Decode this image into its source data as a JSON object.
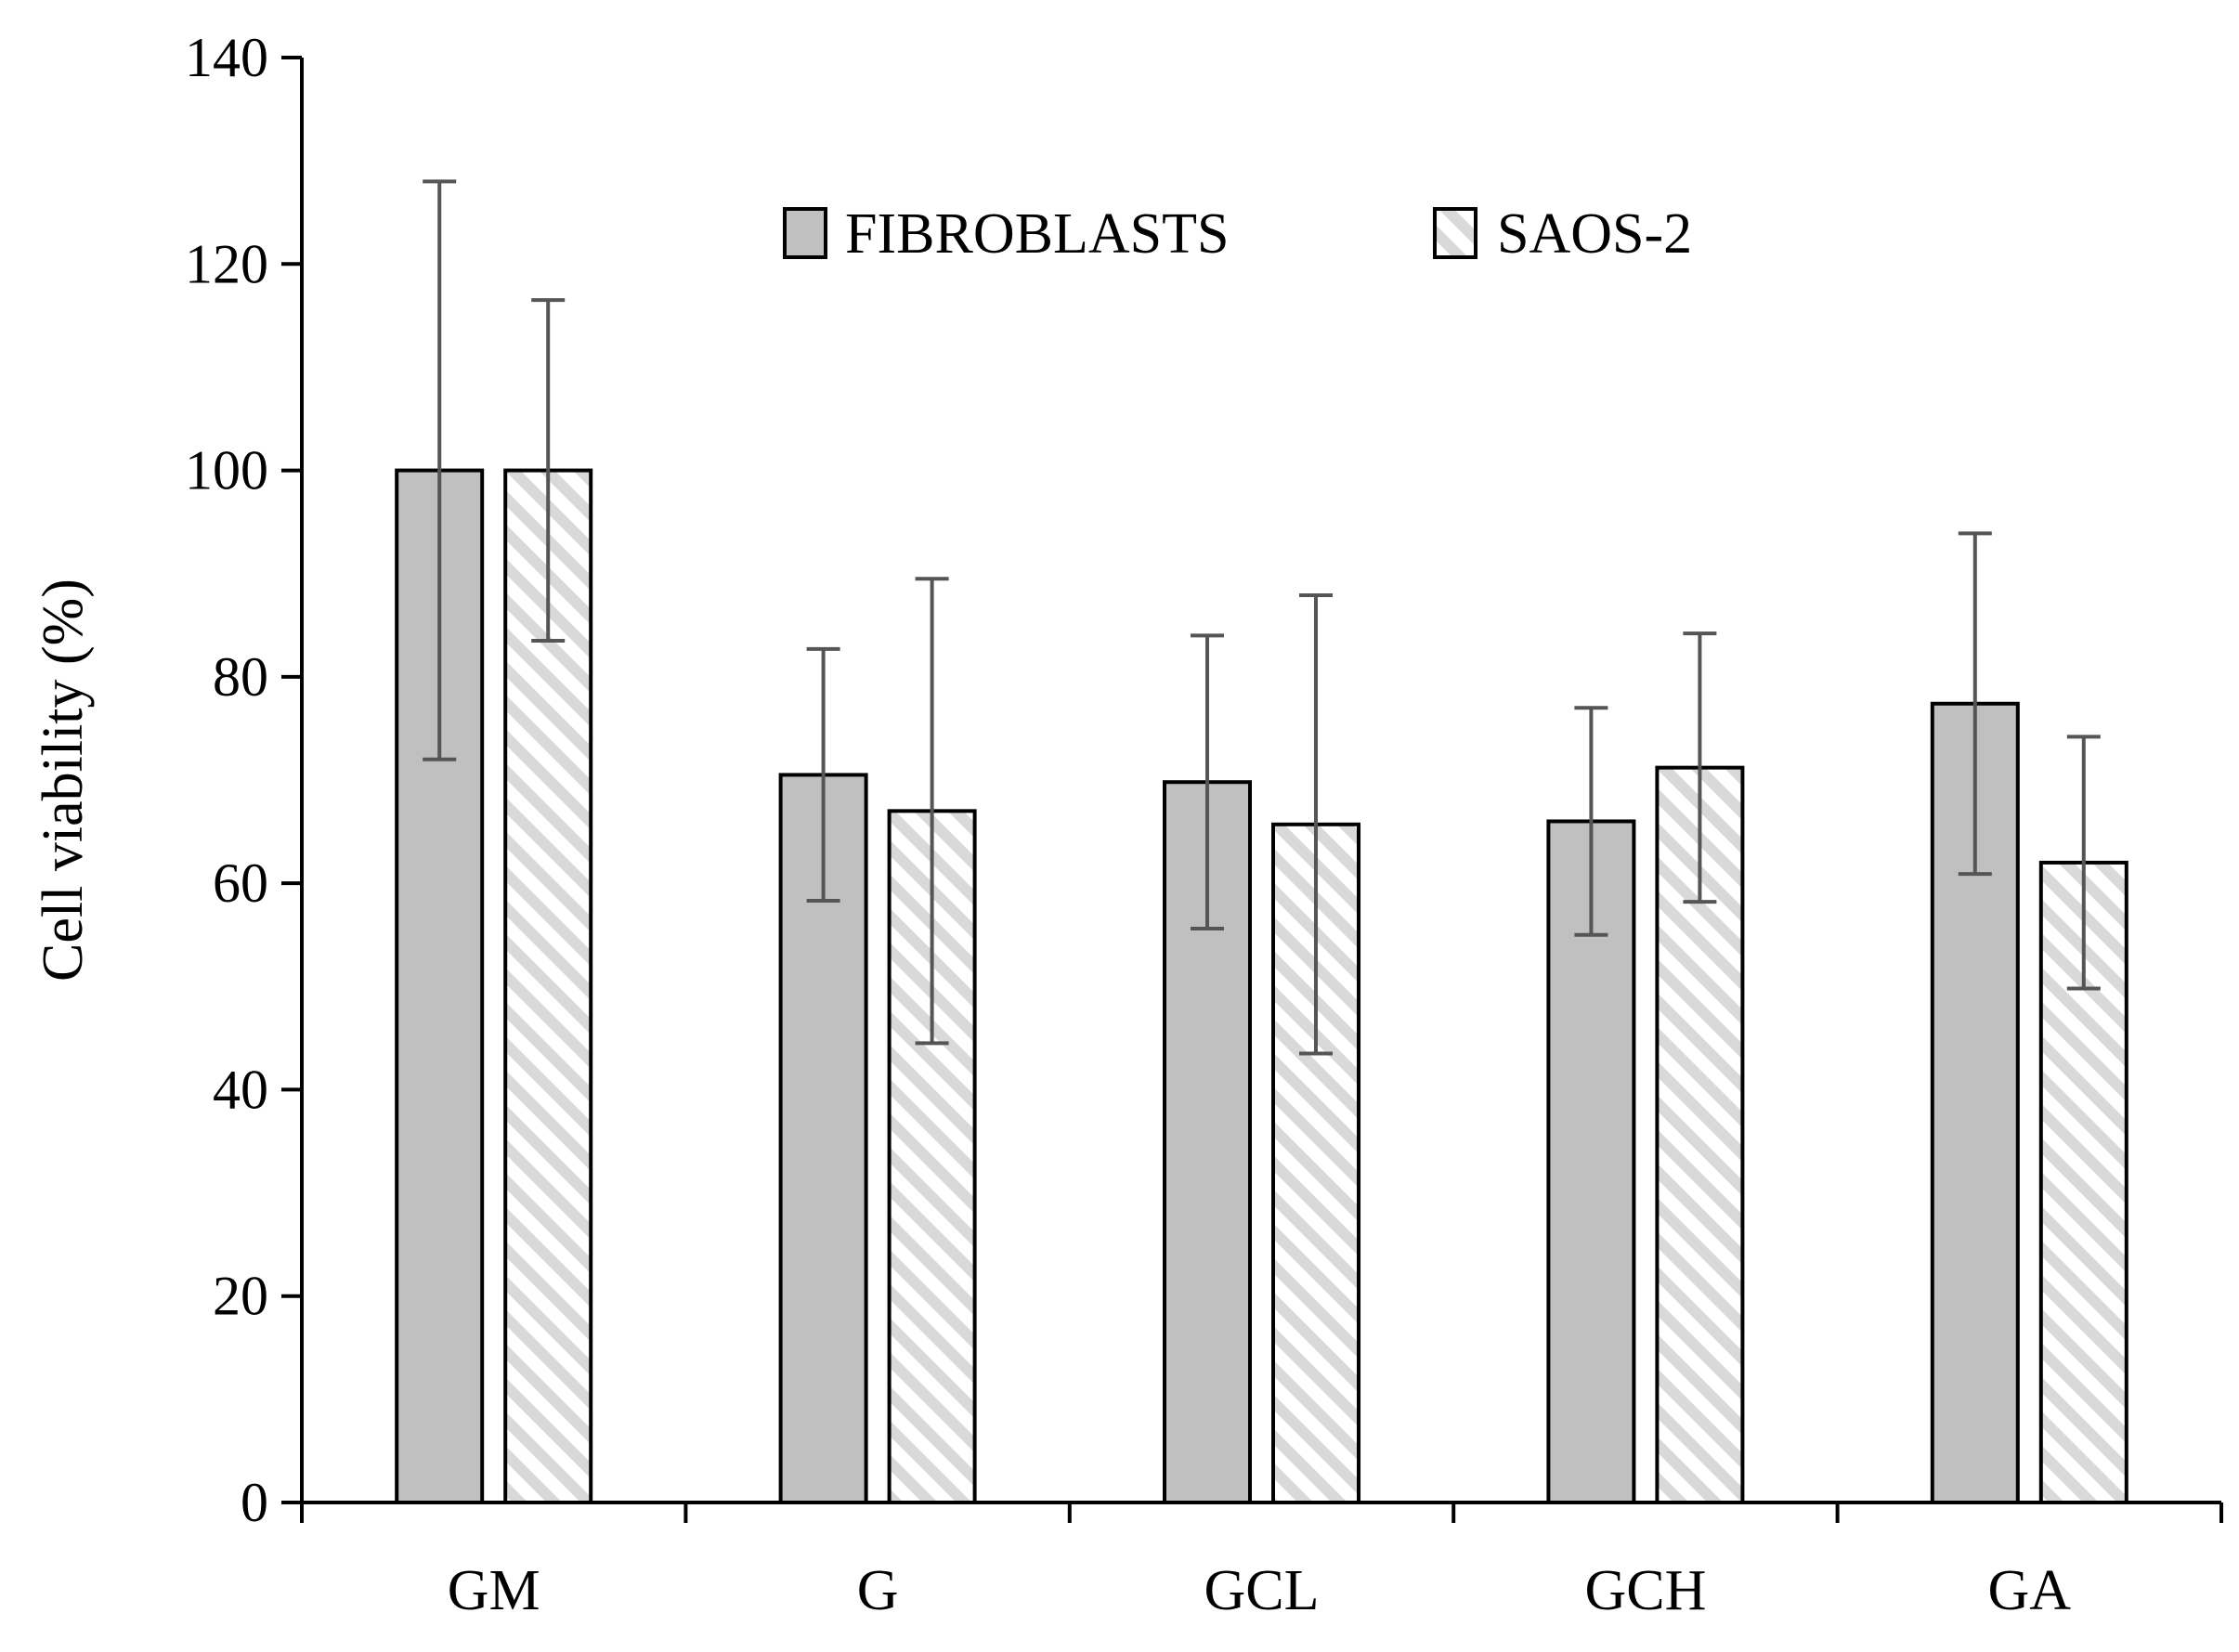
{
  "chart_data": {
    "type": "bar",
    "title": "",
    "xlabel": "",
    "ylabel": "Cell viability (%)",
    "ylim": [
      0,
      140
    ],
    "yticks": [
      0,
      20,
      40,
      60,
      80,
      100,
      120,
      140
    ],
    "categories": [
      "GM",
      "G",
      "GCL",
      "GCH",
      "GA"
    ],
    "series": [
      {
        "name": "FIBROBLASTS",
        "fill": "solid",
        "color": "#c0c0c0",
        "values": [
          100,
          70.5,
          69.8,
          66.0,
          77.4
        ],
        "errors": [
          28.0,
          12.2,
          14.2,
          11.0,
          16.5
        ]
      },
      {
        "name": "SAOS-2",
        "fill": "hatched",
        "color": "#d9d9d9",
        "values": [
          100,
          67.0,
          65.7,
          71.2,
          62.0
        ],
        "errors": [
          16.5,
          22.5,
          22.2,
          13.0,
          12.2
        ]
      }
    ],
    "legend_position": "top-center",
    "grid": false,
    "colors": {
      "axis": "#000000",
      "bar_border": "#000000",
      "error_bar": "#555555",
      "hatch_line": "#d9d9d9"
    }
  }
}
